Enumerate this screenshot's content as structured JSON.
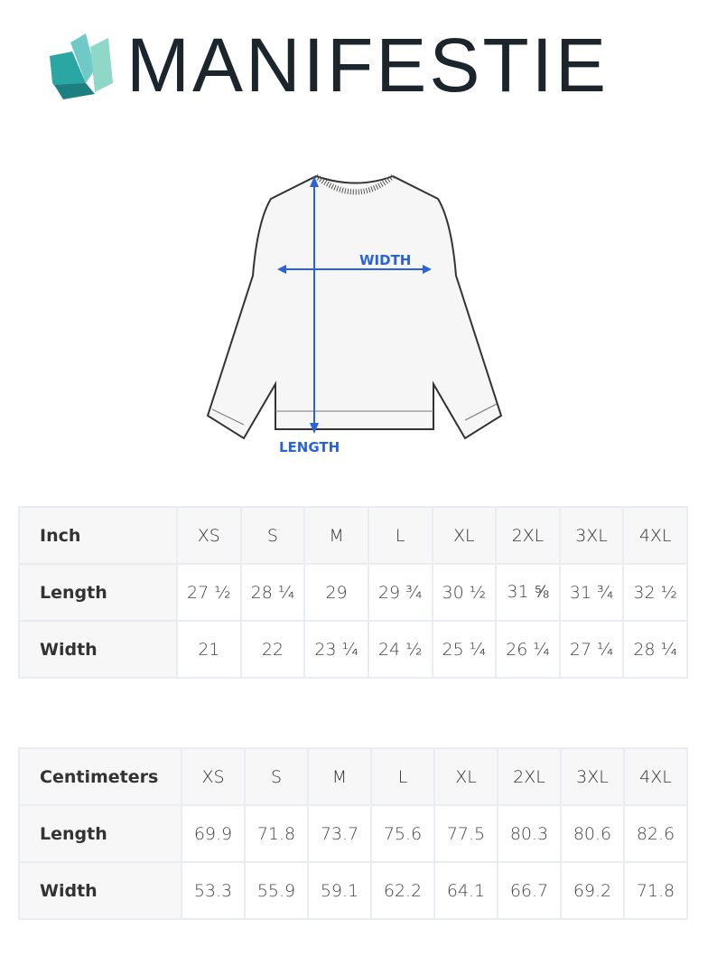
{
  "brand": {
    "name": "MANIFESTIE",
    "accent": "#2aa7a3",
    "text_color": "#1b252b"
  },
  "diagram": {
    "width_label": "WIDTH",
    "length_label": "LENGTH",
    "arrow_color": "#2a63d9"
  },
  "inch_table": {
    "headers": [
      "Inch",
      "XS",
      "S",
      "M",
      "L",
      "XL",
      "2XL",
      "3XL",
      "4XL"
    ],
    "rows": [
      {
        "label": "Length",
        "values": [
          "27 ½",
          "28 ¼",
          "29",
          "29 ¾",
          "30 ½",
          "31 ⅝",
          "31 ¾",
          "32 ½"
        ]
      },
      {
        "label": "Width",
        "values": [
          "21",
          "22",
          "23 ¼",
          "24 ½",
          "25 ¼",
          "26 ¼",
          "27 ¼",
          "28 ¼"
        ]
      }
    ]
  },
  "cm_table": {
    "headers": [
      "Centimeters",
      "XS",
      "S",
      "M",
      "L",
      "XL",
      "2XL",
      "3XL",
      "4XL"
    ],
    "rows": [
      {
        "label": "Length",
        "values": [
          "69.9",
          "71.8",
          "73.7",
          "75.6",
          "77.5",
          "80.3",
          "80.6",
          "82.6"
        ]
      },
      {
        "label": "Width",
        "values": [
          "53.3",
          "55.9",
          "59.1",
          "62.2",
          "64.1",
          "66.7",
          "69.2",
          "71.8"
        ]
      }
    ]
  }
}
